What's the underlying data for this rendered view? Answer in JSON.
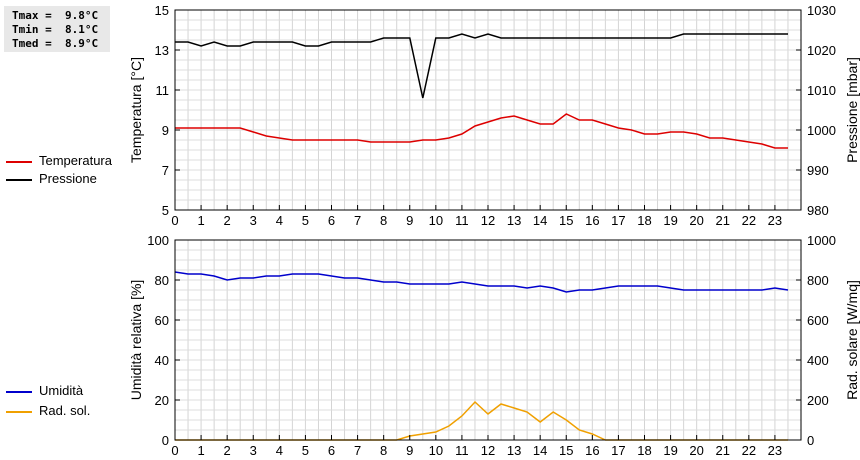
{
  "stats": {
    "tmax": "Tmax =  9.8°C",
    "tmin": "Tmin =  8.1°C",
    "tmed": "Tmed =  8.9°C"
  },
  "chart_data": [
    {
      "type": "line",
      "x_ticks": [
        "0",
        "1",
        "2",
        "3",
        "4",
        "5",
        "6",
        "7",
        "8",
        "9",
        "10",
        "11",
        "12",
        "13",
        "14",
        "15",
        "16",
        "17",
        "18",
        "19",
        "20",
        "21",
        "22",
        "23"
      ],
      "xlim": [
        0,
        24
      ],
      "ylabel": "Temperatura [°C]",
      "ylim": [
        5,
        15
      ],
      "y_ticks": [
        5,
        7,
        9,
        11,
        13,
        15
      ],
      "y2label": "Pressione [mbar]",
      "y2lim": [
        980,
        1030
      ],
      "y2_ticks": [
        980,
        990,
        1000,
        1010,
        1020,
        1030
      ],
      "grid": true,
      "legend_placement": "left",
      "series": [
        {
          "name": "Temperatura",
          "axis": "left",
          "color": "#dd0000",
          "x": [
            0,
            0.5,
            1,
            1.5,
            2,
            2.5,
            3,
            3.5,
            4,
            4.5,
            5,
            5.5,
            6,
            6.5,
            7,
            7.5,
            8,
            8.5,
            9,
            9.5,
            10,
            10.5,
            11,
            11.5,
            12,
            12.5,
            13,
            13.5,
            14,
            14.5,
            15,
            15.5,
            16,
            16.5,
            17,
            17.5,
            18,
            18.5,
            19,
            19.5,
            20,
            20.5,
            21,
            21.5,
            22,
            22.5,
            23,
            23.5
          ],
          "values": [
            9.1,
            9.1,
            9.1,
            9.1,
            9.1,
            9.1,
            8.9,
            8.7,
            8.6,
            8.5,
            8.5,
            8.5,
            8.5,
            8.5,
            8.5,
            8.4,
            8.4,
            8.4,
            8.4,
            8.5,
            8.5,
            8.6,
            8.8,
            9.2,
            9.4,
            9.6,
            9.7,
            9.5,
            9.3,
            9.3,
            9.8,
            9.5,
            9.5,
            9.3,
            9.1,
            9.0,
            8.8,
            8.8,
            8.9,
            8.9,
            8.8,
            8.6,
            8.6,
            8.5,
            8.4,
            8.3,
            8.1,
            8.1
          ]
        },
        {
          "name": "Pressione",
          "axis": "right",
          "color": "#000000",
          "x": [
            0,
            0.5,
            1,
            1.5,
            2,
            2.5,
            3,
            3.5,
            4,
            4.5,
            5,
            5.5,
            6,
            6.5,
            7,
            7.5,
            8,
            8.5,
            9,
            9.5,
            10,
            10.5,
            11,
            11.5,
            12,
            12.5,
            13,
            13.5,
            14,
            14.5,
            15,
            15.5,
            16,
            16.5,
            17,
            17.5,
            18,
            18.5,
            19,
            19.5,
            20,
            20.5,
            21,
            21.5,
            22,
            22.5,
            23,
            23.5
          ],
          "values": [
            1022,
            1022,
            1021,
            1022,
            1021,
            1021,
            1022,
            1022,
            1022,
            1022,
            1021,
            1021,
            1022,
            1022,
            1022,
            1022,
            1023,
            1023,
            1023,
            1008,
            1023,
            1023,
            1024,
            1023,
            1024,
            1023,
            1023,
            1023,
            1023,
            1023,
            1023,
            1023,
            1023,
            1023,
            1023,
            1023,
            1023,
            1023,
            1023,
            1024,
            1024,
            1024,
            1024,
            1024,
            1024,
            1024,
            1024,
            1024
          ]
        }
      ]
    },
    {
      "type": "line",
      "x_ticks": [
        "0",
        "1",
        "2",
        "3",
        "4",
        "5",
        "6",
        "7",
        "8",
        "9",
        "10",
        "11",
        "12",
        "13",
        "14",
        "15",
        "16",
        "17",
        "18",
        "19",
        "20",
        "21",
        "22",
        "23"
      ],
      "xlim": [
        0,
        24
      ],
      "ylabel": "Umidità relativa [%]",
      "ylim": [
        0,
        100
      ],
      "y_ticks": [
        0,
        20,
        40,
        60,
        80,
        100
      ],
      "y2label": "Rad. solare [W/mq]",
      "y2lim": [
        0,
        1000
      ],
      "y2_ticks": [
        0,
        200,
        400,
        600,
        800,
        1000
      ],
      "grid": true,
      "legend_placement": "left",
      "series": [
        {
          "name": "Umidità",
          "axis": "left",
          "color": "#0000cc",
          "x": [
            0,
            0.5,
            1,
            1.5,
            2,
            2.5,
            3,
            3.5,
            4,
            4.5,
            5,
            5.5,
            6,
            6.5,
            7,
            7.5,
            8,
            8.5,
            9,
            9.5,
            10,
            10.5,
            11,
            11.5,
            12,
            12.5,
            13,
            13.5,
            14,
            14.5,
            15,
            15.5,
            16,
            16.5,
            17,
            17.5,
            18,
            18.5,
            19,
            19.5,
            20,
            20.5,
            21,
            21.5,
            22,
            22.5,
            23,
            23.5
          ],
          "values": [
            84,
            83,
            83,
            82,
            80,
            81,
            81,
            82,
            82,
            83,
            83,
            83,
            82,
            81,
            81,
            80,
            79,
            79,
            78,
            78,
            78,
            78,
            79,
            78,
            77,
            77,
            77,
            76,
            77,
            76,
            74,
            75,
            75,
            76,
            77,
            77,
            77,
            77,
            76,
            75,
            75,
            75,
            75,
            75,
            75,
            75,
            76,
            75
          ]
        },
        {
          "name": "Rad. sol.",
          "axis": "right",
          "color": "#f0a000",
          "x": [
            0,
            0.5,
            1,
            1.5,
            2,
            2.5,
            3,
            3.5,
            4,
            4.5,
            5,
            5.5,
            6,
            6.5,
            7,
            7.5,
            8,
            8.5,
            9,
            9.5,
            10,
            10.5,
            11,
            11.5,
            12,
            12.5,
            13,
            13.5,
            14,
            14.5,
            15,
            15.5,
            16,
            16.5,
            17,
            17.5,
            18,
            18.5,
            19,
            19.5,
            20,
            20.5,
            21,
            21.5,
            22,
            22.5,
            23,
            23.5
          ],
          "values": [
            0,
            0,
            0,
            0,
            0,
            0,
            0,
            0,
            0,
            0,
            0,
            0,
            0,
            0,
            0,
            0,
            0,
            0,
            20,
            30,
            40,
            70,
            120,
            190,
            130,
            180,
            160,
            140,
            90,
            140,
            100,
            50,
            30,
            0,
            0,
            0,
            0,
            0,
            0,
            0,
            0,
            0,
            0,
            0,
            0,
            0,
            0,
            0
          ]
        }
      ]
    }
  ]
}
